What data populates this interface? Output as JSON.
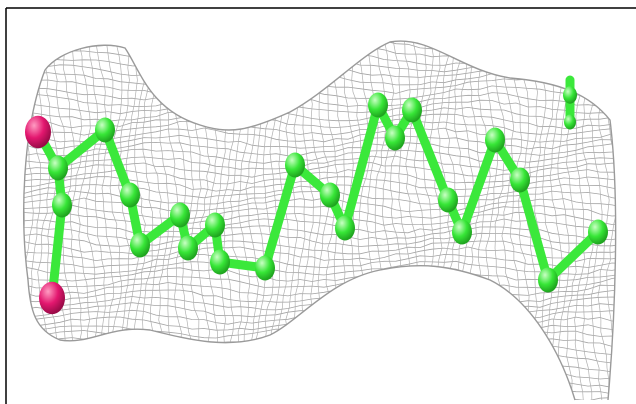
{
  "figure": {
    "description_hidden": "",
    "colors": {
      "background": "#ffffff",
      "border": "#000000",
      "mesh": "#8e8e8e",
      "carbon": "#37e637",
      "carbon_highlight": "#c9ffc4",
      "oxygen": "#e3176f",
      "oxygen_highlight": "#ff9cc2"
    },
    "molecule": {
      "chain_atom_count": 20,
      "oxygen_atom_count": 2,
      "render_style": "ball-and-stick",
      "density_style": "wire-mesh"
    }
  }
}
